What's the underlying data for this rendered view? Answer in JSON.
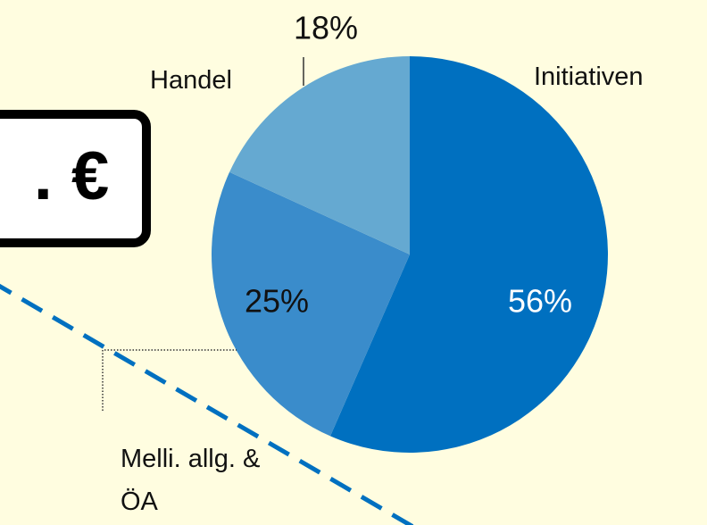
{
  "callout": {
    "text": ". €"
  },
  "chart_data": {
    "type": "pie",
    "categories": [
      "Initiativen",
      "Melli. allg. & ÖA",
      "Handel"
    ],
    "values": [
      56,
      25,
      18
    ],
    "value_labels": [
      "56%",
      "25%",
      "18%"
    ],
    "colors": [
      "#0070c0",
      "#3a8ccb",
      "#65a9d1"
    ]
  }
}
